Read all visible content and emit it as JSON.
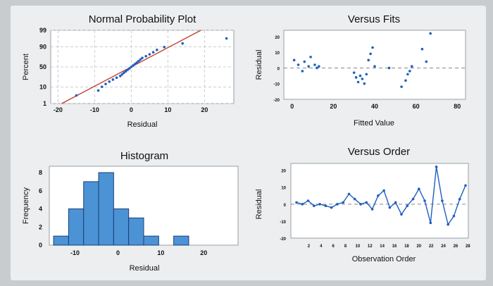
{
  "colors": {
    "points": "#1f5fbf",
    "fit_line": "#c0392b",
    "bars": "#4c93d6"
  },
  "chart_data": [
    {
      "type": "scatter",
      "title": "Normal Probability Plot",
      "xlabel": "Residual",
      "ylabel": "Percent",
      "x_ticks": [
        "-20",
        "-10",
        "0",
        "10",
        "20"
      ],
      "y_ticks": [
        "1",
        "10",
        "50",
        "90",
        "99"
      ],
      "xlim": [
        -22,
        28
      ],
      "ylim": [
        1,
        99
      ],
      "y_scale": "normal-probability",
      "grid": true,
      "fit_line": [
        [
          -19,
          1
        ],
        [
          19,
          99
        ]
      ],
      "points": [
        [
          -15,
          3.5
        ],
        [
          -9,
          6.7
        ],
        [
          -8,
          10.3
        ],
        [
          -7,
          13.9
        ],
        [
          -6,
          17.5
        ],
        [
          -5,
          21.1
        ],
        [
          -4,
          24.7
        ],
        [
          -3,
          28.3
        ],
        [
          -2.5,
          31.9
        ],
        [
          -2,
          35.5
        ],
        [
          -1.5,
          39.1
        ],
        [
          -1,
          42.7
        ],
        [
          -0.5,
          46.3
        ],
        [
          0,
          50
        ],
        [
          0.5,
          53.6
        ],
        [
          1,
          57.2
        ],
        [
          1.5,
          60.8
        ],
        [
          2,
          64.4
        ],
        [
          2.5,
          68
        ],
        [
          3,
          71.6
        ],
        [
          4,
          75.2
        ],
        [
          5,
          78.8
        ],
        [
          6,
          82.4
        ],
        [
          7,
          86
        ],
        [
          9,
          89.6
        ],
        [
          14,
          93.2
        ],
        [
          26,
          96.5
        ]
      ]
    },
    {
      "type": "scatter",
      "title": "Versus Fits",
      "xlabel": "Fitted Value",
      "ylabel": "Residual",
      "x_ticks": [
        "0",
        "20",
        "40",
        "60",
        "80"
      ],
      "y_ticks": [
        "20",
        "10",
        "0",
        "-10",
        "-20"
      ],
      "xlim": [
        -4,
        84
      ],
      "ylim": [
        -20,
        24
      ],
      "reference_y": 0,
      "points": [
        [
          1,
          5
        ],
        [
          3,
          2
        ],
        [
          5,
          -2
        ],
        [
          6,
          4
        ],
        [
          8,
          1
        ],
        [
          9,
          7
        ],
        [
          11,
          2
        ],
        [
          12,
          0
        ],
        [
          13,
          1
        ],
        [
          30,
          -3
        ],
        [
          31,
          -6
        ],
        [
          32,
          -9
        ],
        [
          33,
          -5
        ],
        [
          34,
          -7
        ],
        [
          35,
          -10
        ],
        [
          36,
          -4
        ],
        [
          37,
          5
        ],
        [
          38,
          9
        ],
        [
          39,
          13
        ],
        [
          40,
          1
        ],
        [
          47,
          0
        ],
        [
          53,
          -12
        ],
        [
          55,
          -8
        ],
        [
          56,
          -4
        ],
        [
          57,
          -2
        ],
        [
          58,
          1
        ],
        [
          63,
          12
        ],
        [
          65,
          4
        ],
        [
          67,
          22
        ]
      ]
    },
    {
      "type": "bar",
      "title": "Histogram",
      "xlabel": "Residual",
      "ylabel": "Frequency",
      "x_ticks": [
        "-10",
        "0",
        "10",
        "20"
      ],
      "y_ticks": [
        "0",
        "2",
        "4",
        "6",
        "8"
      ],
      "bin_start": -15,
      "bin_width": 3.5,
      "values": [
        1,
        4,
        7,
        8,
        4,
        3,
        1,
        0,
        1
      ],
      "ylim": [
        0,
        8.7
      ]
    },
    {
      "type": "line",
      "title": "Versus Order",
      "xlabel": "Observation Order",
      "ylabel": "Residual",
      "x_ticks": [
        "2",
        "4",
        "6",
        "8",
        "10",
        "12",
        "14",
        "16",
        "18",
        "20",
        "22",
        "24",
        "26",
        "28"
      ],
      "y_ticks": [
        "20",
        "10",
        "0",
        "-10",
        "-20"
      ],
      "xlim": [
        0,
        29
      ],
      "ylim": [
        -20,
        24
      ],
      "reference_y": 0,
      "values": [
        1,
        0,
        2,
        -1,
        0,
        -1,
        -2,
        0,
        1,
        6,
        3,
        0,
        1,
        -3,
        5,
        8,
        -2,
        1,
        -6,
        -1,
        3,
        9,
        2,
        -11,
        22,
        2,
        -12,
        -7,
        3,
        11
      ]
    }
  ]
}
